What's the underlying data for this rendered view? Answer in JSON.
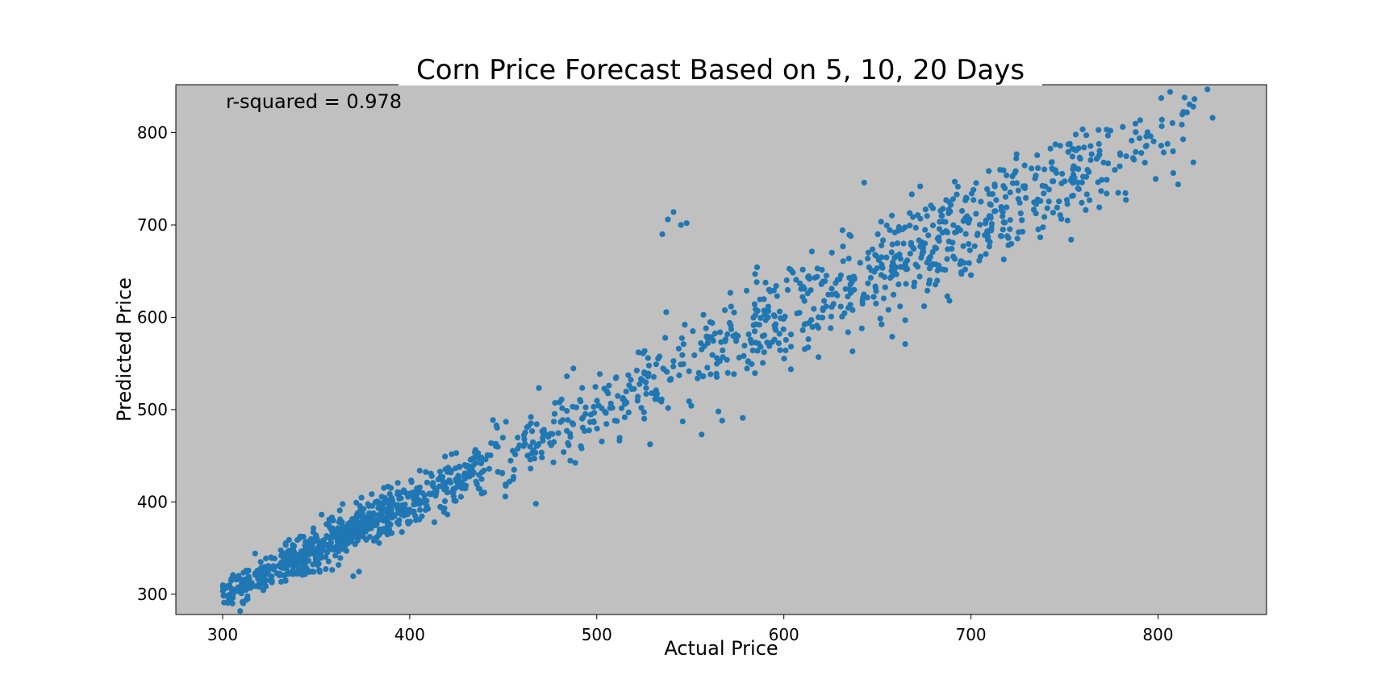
{
  "chart_data": {
    "type": "scatter",
    "title": "Corn Price Forecast Based on 5, 10, 20 Days",
    "xlabel": "Actual Price",
    "ylabel": "Predicted Price",
    "annotation": "r-squared = 0.978",
    "xlim": [
      275,
      858
    ],
    "ylim": [
      278,
      852
    ],
    "xticks": [
      300,
      400,
      500,
      600,
      700,
      800
    ],
    "yticks": [
      300,
      400,
      500,
      600,
      700,
      800
    ],
    "grid": false,
    "legend": "none",
    "colors": {
      "point": "#1f77b4",
      "plot_bg": "#c0c0c0",
      "page_bg": "#ffffff"
    },
    "point_count": 1600,
    "clusters": [
      {
        "x_range": [
          300,
          330
        ],
        "n": 120,
        "noise": 9,
        "slope": 1.0,
        "offset": 0
      },
      {
        "x_range": [
          330,
          390
        ],
        "n": 430,
        "noise": 12,
        "slope": 1.0,
        "offset": 0
      },
      {
        "x_range": [
          390,
          440
        ],
        "n": 190,
        "noise": 14,
        "slope": 1.0,
        "offset": 0
      },
      {
        "x_range": [
          440,
          520
        ],
        "n": 150,
        "noise": 18,
        "slope": 1.0,
        "offset": 0
      },
      {
        "x_range": [
          520,
          580
        ],
        "n": 110,
        "noise": 22,
        "slope": 1.0,
        "offset": 0
      },
      {
        "x_range": [
          580,
          640
        ],
        "n": 160,
        "noise": 28,
        "slope": 1.0,
        "offset": 0
      },
      {
        "x_range": [
          640,
          700
        ],
        "n": 200,
        "noise": 30,
        "slope": 1.0,
        "offset": 0
      },
      {
        "x_range": [
          700,
          770
        ],
        "n": 180,
        "noise": 26,
        "slope": 1.0,
        "offset": 0
      },
      {
        "x_range": [
          770,
          830
        ],
        "n": 60,
        "noise": 24,
        "slope": 1.0,
        "offset": 0
      }
    ],
    "outliers": [
      {
        "x": 535,
        "y": 690
      },
      {
        "x": 538,
        "y": 706
      },
      {
        "x": 541,
        "y": 714
      },
      {
        "x": 545,
        "y": 700
      },
      {
        "x": 548,
        "y": 702
      },
      {
        "x": 556,
        "y": 473
      },
      {
        "x": 578,
        "y": 491
      },
      {
        "x": 565,
        "y": 498
      },
      {
        "x": 567,
        "y": 488
      }
    ]
  }
}
